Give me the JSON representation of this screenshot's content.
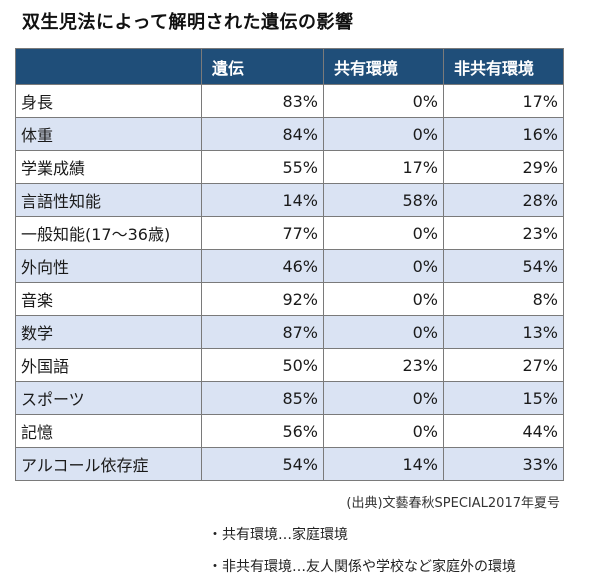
{
  "title": "双生児法によって解明された遺伝の影響",
  "table": {
    "headers": [
      "",
      "遺伝",
      "共有環境",
      "非共有環境"
    ],
    "rows": [
      {
        "label": "身長",
        "heredity": "83%",
        "shared": "0%",
        "nonshared": "17%"
      },
      {
        "label": "体重",
        "heredity": "84%",
        "shared": "0%",
        "nonshared": "16%"
      },
      {
        "label": "学業成績",
        "heredity": "55%",
        "shared": "17%",
        "nonshared": "29%"
      },
      {
        "label": "言語性知能",
        "heredity": "14%",
        "shared": "58%",
        "nonshared": "28%"
      },
      {
        "label": "一般知能(17〜36歳)",
        "heredity": "77%",
        "shared": "0%",
        "nonshared": "23%"
      },
      {
        "label": "外向性",
        "heredity": "46%",
        "shared": "0%",
        "nonshared": "54%"
      },
      {
        "label": "音楽",
        "heredity": "92%",
        "shared": "0%",
        "nonshared": "8%"
      },
      {
        "label": "数学",
        "heredity": "87%",
        "shared": "0%",
        "nonshared": "13%"
      },
      {
        "label": "外国語",
        "heredity": "50%",
        "shared": "23%",
        "nonshared": "27%"
      },
      {
        "label": "スポーツ",
        "heredity": "85%",
        "shared": "0%",
        "nonshared": "15%"
      },
      {
        "label": "記憶",
        "heredity": "56%",
        "shared": "0%",
        "nonshared": "44%"
      },
      {
        "label": "アルコール依存症",
        "heredity": "54%",
        "shared": "14%",
        "nonshared": "33%"
      }
    ]
  },
  "source": "(出典)文藝春秋SPECIAL2017年夏号",
  "notes": [
    "・共有環境…家庭環境",
    "・非共有環境…友人関係や学校など家庭外の環境"
  ]
}
